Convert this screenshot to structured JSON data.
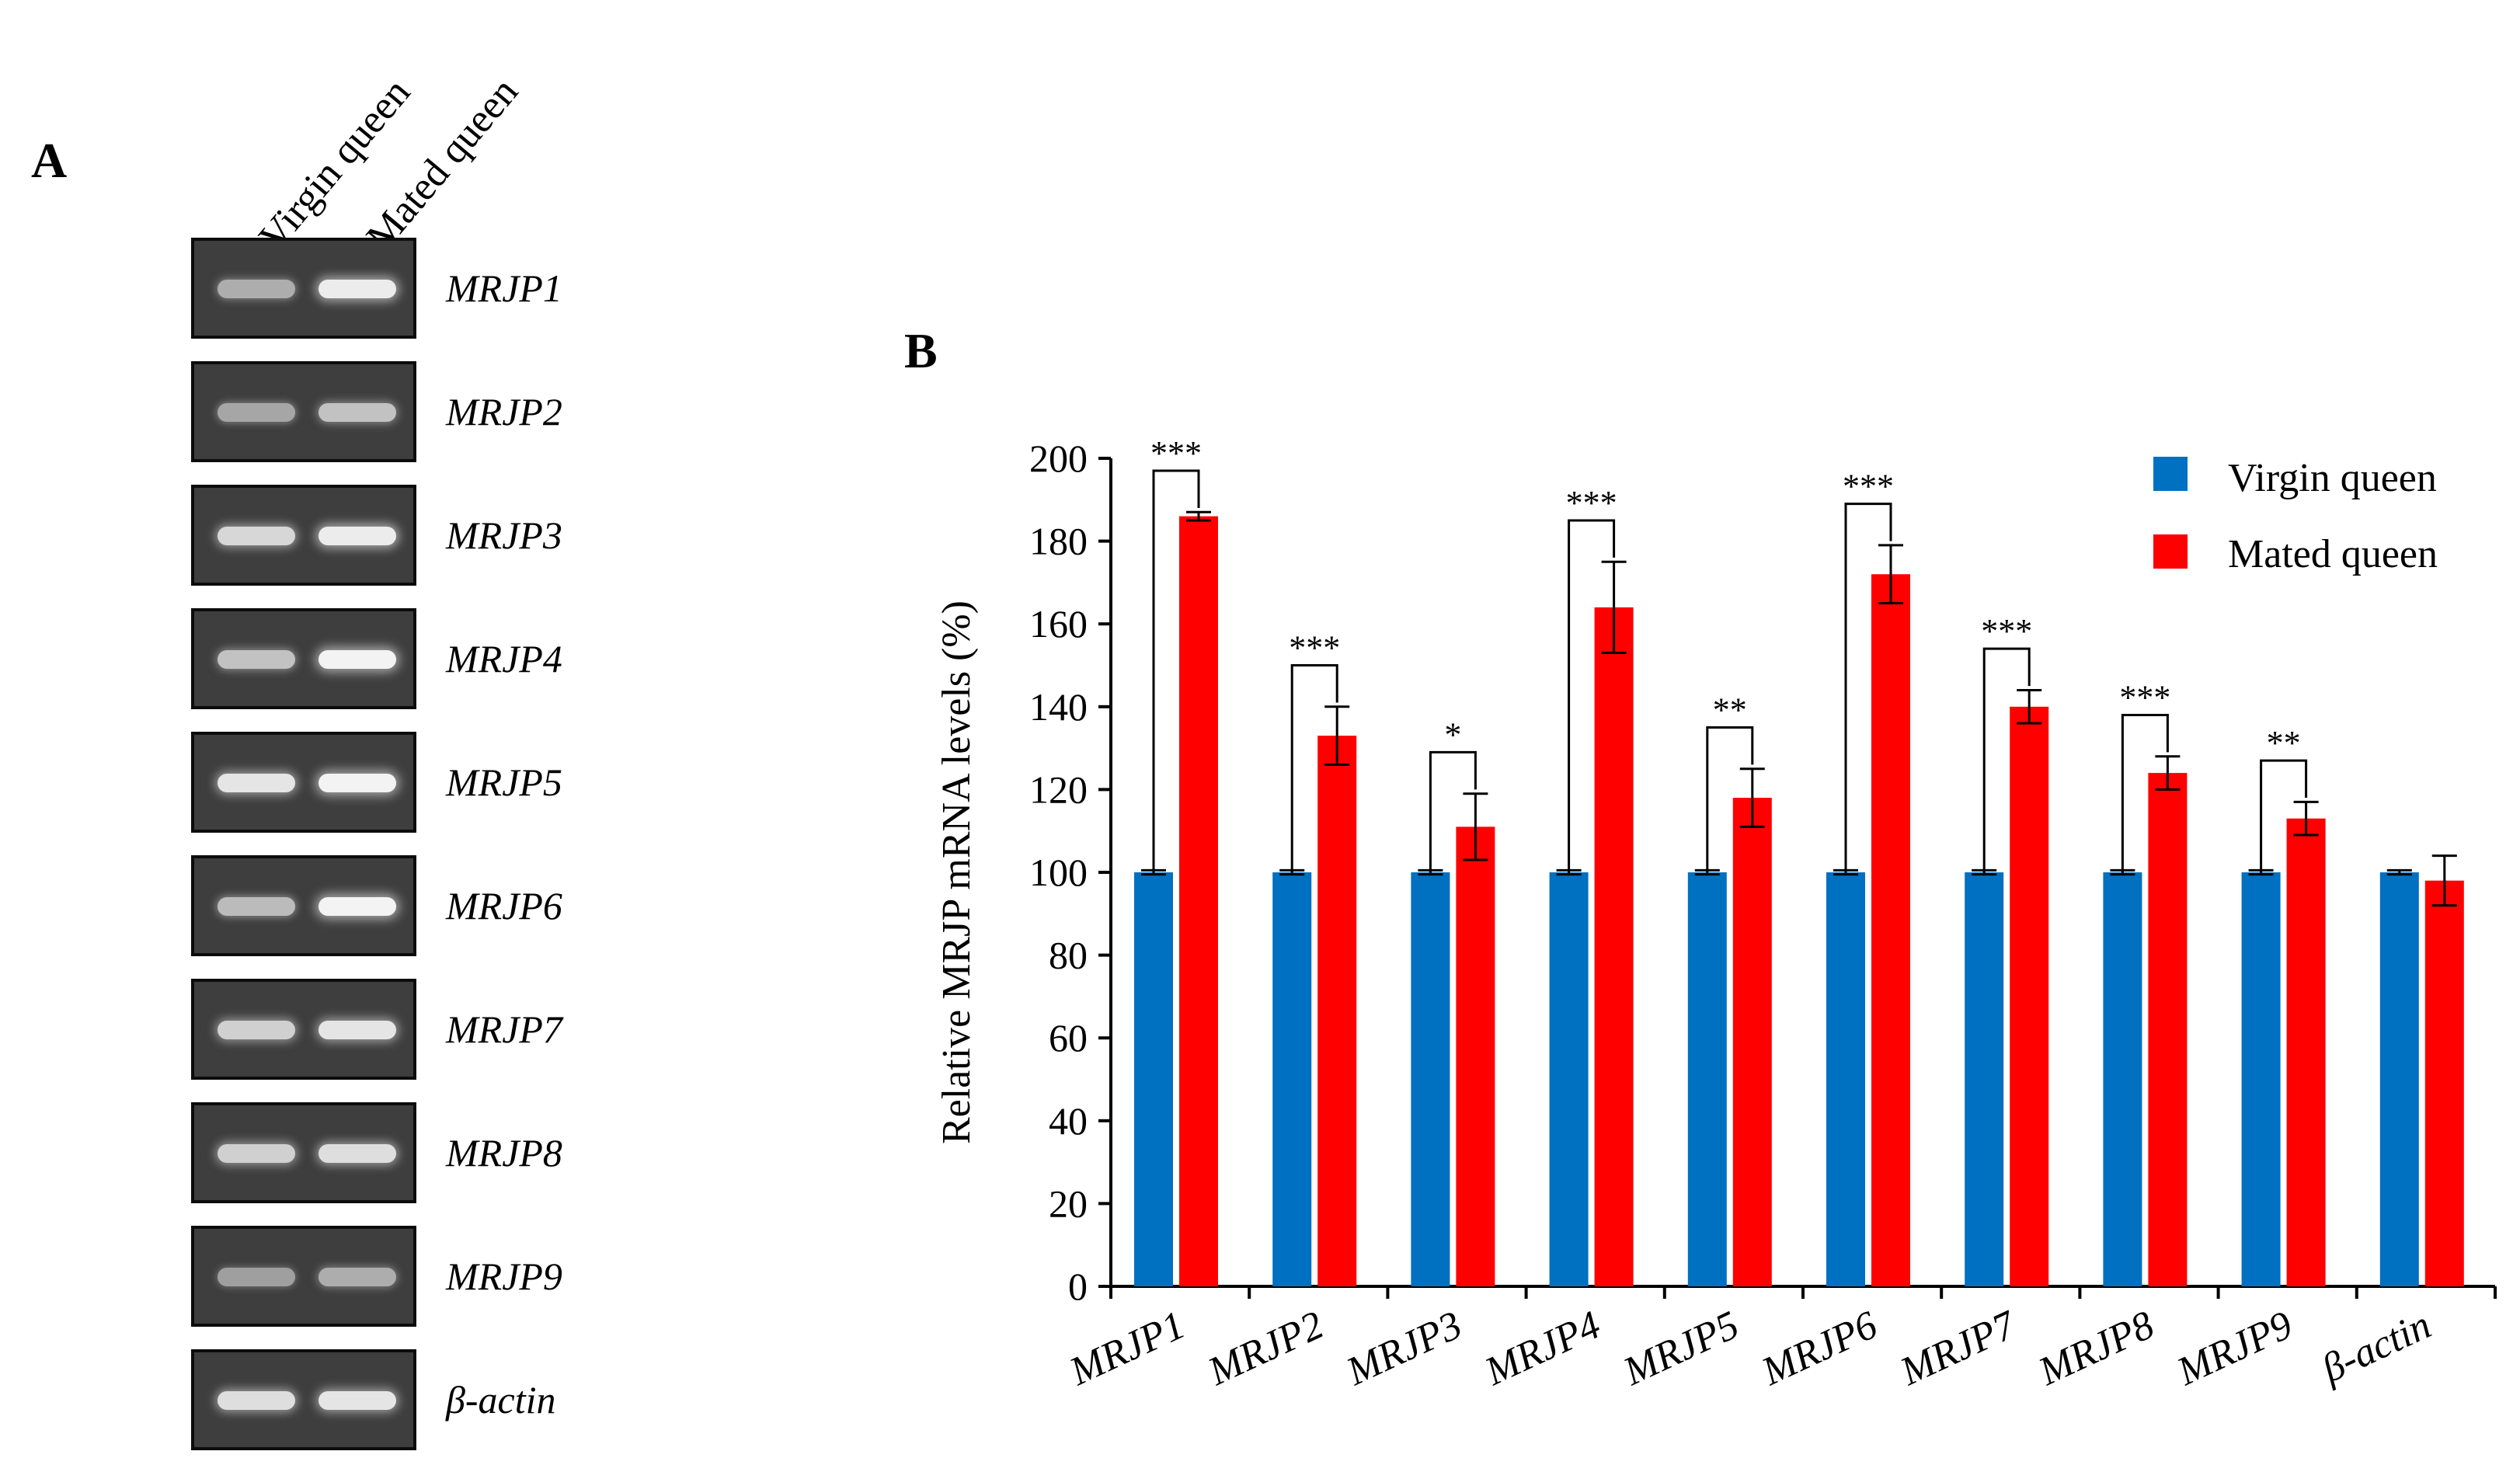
{
  "panel_a": {
    "letter": "A",
    "lanes": [
      "Virgin queen",
      "Mated queen"
    ],
    "genes": [
      "MRJP1",
      "MRJP2",
      "MRJP3",
      "MRJP4",
      "MRJP5",
      "MRJP6",
      "MRJP7",
      "MRJP8",
      "MRJP9",
      "β-actin"
    ],
    "band_intensity": {
      "virgin": [
        0.45,
        0.4,
        0.75,
        0.6,
        0.85,
        0.55,
        0.7,
        0.7,
        0.35,
        0.8
      ],
      "mated": [
        0.9,
        0.6,
        0.9,
        0.95,
        0.95,
        0.95,
        0.85,
        0.8,
        0.45,
        0.85
      ]
    }
  },
  "panel_b": {
    "letter": "B"
  },
  "chart_data": {
    "type": "bar",
    "categories": [
      "MRJP1",
      "MRJP2",
      "MRJP3",
      "MRJP4",
      "MRJP5",
      "MRJP6",
      "MRJP7",
      "MRJP8",
      "MRJP9",
      "β-actin"
    ],
    "series": [
      {
        "name": "Virgin queen",
        "color": "#0070c0",
        "values": [
          100,
          100,
          100,
          100,
          100,
          100,
          100,
          100,
          100,
          100
        ],
        "errors": [
          0.5,
          0.5,
          0.5,
          0.5,
          0.5,
          0.5,
          0.5,
          0.5,
          0.5,
          0.5
        ]
      },
      {
        "name": "Mated queen",
        "color": "#ff0000",
        "values": [
          186,
          133,
          111,
          164,
          118,
          172,
          140,
          124,
          113,
          98
        ],
        "errors": [
          1,
          7,
          8,
          11,
          7,
          7,
          4,
          4,
          4,
          6
        ]
      }
    ],
    "significance": [
      "***",
      "***",
      "*",
      "***",
      "**",
      "***",
      "***",
      "***",
      "**",
      ""
    ],
    "ylabel": "Relative  MRJP mRNA levels  (%)",
    "ylim": [
      0,
      200
    ],
    "yticks": [
      0,
      20,
      40,
      60,
      80,
      100,
      120,
      140,
      160,
      180,
      200
    ],
    "legend": {
      "position": "top-right"
    },
    "grid": false
  }
}
